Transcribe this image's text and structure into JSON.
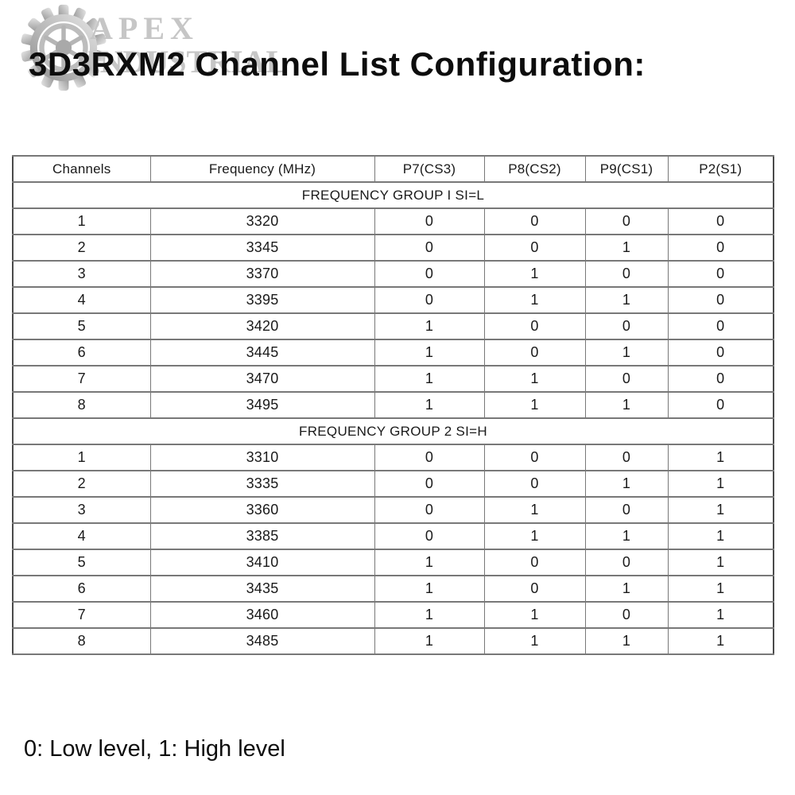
{
  "watermark": {
    "line1": "APEX",
    "line2": "INDUSTRIAL"
  },
  "title": "3D3RXM2 Channel List Configuration:",
  "table": {
    "headers": [
      "Channels",
      "Frequency (MHz)",
      "P7(CS3)",
      "P8(CS2)",
      "P9(CS1)",
      "P2(S1)"
    ],
    "groups": [
      {
        "label": "FREQUENCY GROUP I SI=L",
        "rows": [
          [
            "1",
            "3320",
            "0",
            "0",
            "0",
            "0"
          ],
          [
            "2",
            "3345",
            "0",
            "0",
            "1",
            "0"
          ],
          [
            "3",
            "3370",
            "0",
            "1",
            "0",
            "0"
          ],
          [
            "4",
            "3395",
            "0",
            "1",
            "1",
            "0"
          ],
          [
            "5",
            "3420",
            "1",
            "0",
            "0",
            "0"
          ],
          [
            "6",
            "3445",
            "1",
            "0",
            "1",
            "0"
          ],
          [
            "7",
            "3470",
            "1",
            "1",
            "0",
            "0"
          ],
          [
            "8",
            "3495",
            "1",
            "1",
            "1",
            "0"
          ]
        ]
      },
      {
        "label": "FREQUENCY GROUP 2 SI=H",
        "rows": [
          [
            "1",
            "3310",
            "0",
            "0",
            "0",
            "1"
          ],
          [
            "2",
            "3335",
            "0",
            "0",
            "1",
            "1"
          ],
          [
            "3",
            "3360",
            "0",
            "1",
            "0",
            "1"
          ],
          [
            "4",
            "3385",
            "0",
            "1",
            "1",
            "1"
          ],
          [
            "5",
            "3410",
            "1",
            "0",
            "0",
            "1"
          ],
          [
            "6",
            "3435",
            "1",
            "0",
            "1",
            "1"
          ],
          [
            "7",
            "3460",
            "1",
            "1",
            "0",
            "1"
          ],
          [
            "8",
            "3485",
            "1",
            "1",
            "1",
            "1"
          ]
        ]
      }
    ]
  },
  "footer": {
    "legend": "0: Low level, 1: High level"
  },
  "colors": {
    "border_outer": "#4a4a4a",
    "border_inner": "#787878",
    "watermark_gray": "#c6c6c6",
    "text": "#0d0d0d"
  }
}
